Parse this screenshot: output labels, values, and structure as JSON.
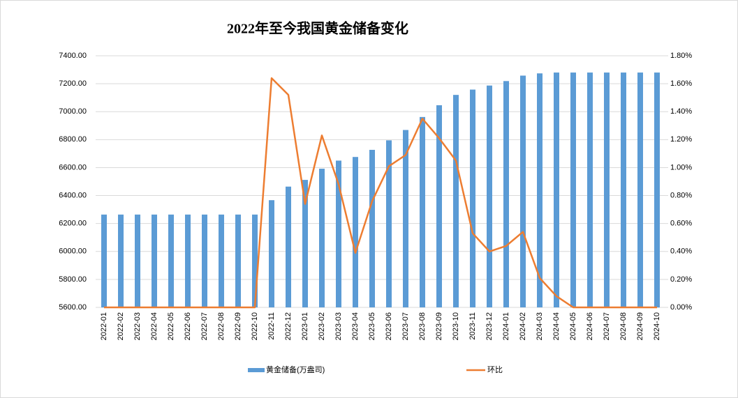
{
  "chart_data": {
    "type": "bar",
    "title": "2022年至今我国黄金储备变化",
    "categories": [
      "2022-01",
      "2022-02",
      "2022-03",
      "2022-04",
      "2022-05",
      "2022-06",
      "2022-07",
      "2022-08",
      "2022-09",
      "2022-10",
      "2022-11",
      "2022-12",
      "2023-01",
      "2023-02",
      "2023-03",
      "2023-04",
      "2023-05",
      "2023-06",
      "2023-07",
      "2023-08",
      "2023-09",
      "2023-10",
      "2023-11",
      "2023-12",
      "2024-01",
      "2024-02",
      "2024-03",
      "2024-04",
      "2024-05",
      "2024-06",
      "2024-07",
      "2024-08",
      "2024-09",
      "2024-10"
    ],
    "series": [
      {
        "name": "黄金储备(万盎司)",
        "type": "bar",
        "color": "#5b9bd5",
        "values": [
          6264,
          6264,
          6264,
          6264,
          6264,
          6264,
          6264,
          6264,
          6264,
          6264,
          6367,
          6464,
          6512,
          6592,
          6650,
          6676,
          6727,
          6795,
          6869,
          6962,
          7046,
          7120,
          7158,
          7187,
          7219,
          7258,
          7274,
          7280,
          7280,
          7280,
          7280,
          7280,
          7280,
          7280
        ]
      },
      {
        "name": "环比",
        "type": "line",
        "axis": "y2",
        "color": "#ed7d31",
        "values": [
          0,
          0,
          0,
          0,
          0,
          0,
          0,
          0,
          0,
          0,
          1.64,
          1.52,
          0.74,
          1.23,
          0.88,
          0.39,
          0.76,
          1.01,
          1.09,
          1.35,
          1.21,
          1.05,
          0.53,
          0.4,
          0.44,
          0.54,
          0.21,
          0.08,
          0,
          0,
          0,
          0,
          0,
          0
        ]
      }
    ],
    "ylim": [
      5600,
      7400
    ],
    "yticks": [
      {
        "value": 5600,
        "label": "5600.00"
      },
      {
        "value": 5800,
        "label": "5800.00"
      },
      {
        "value": 6000,
        "label": "6000.00"
      },
      {
        "value": 6200,
        "label": "6200.00"
      },
      {
        "value": 6400,
        "label": "6400.00"
      },
      {
        "value": 6600,
        "label": "6600.00"
      },
      {
        "value": 6800,
        "label": "6800.00"
      },
      {
        "value": 7000,
        "label": "7000.00"
      },
      {
        "value": 7200,
        "label": "7200.00"
      },
      {
        "value": 7400,
        "label": "7400.00"
      }
    ],
    "y2lim": [
      0,
      1.8
    ],
    "y2ticks": [
      {
        "value": 0,
        "label": "0.00%"
      },
      {
        "value": 0.2,
        "label": "0.20%"
      },
      {
        "value": 0.4,
        "label": "0.40%"
      },
      {
        "value": 0.6,
        "label": "0.60%"
      },
      {
        "value": 0.8,
        "label": "0.80%"
      },
      {
        "value": 1.0,
        "label": "1.00%"
      },
      {
        "value": 1.2,
        "label": "1.20%"
      },
      {
        "value": 1.4,
        "label": "1.40%"
      },
      {
        "value": 1.6,
        "label": "1.60%"
      },
      {
        "value": 1.8,
        "label": "1.80%"
      }
    ],
    "grid": true
  }
}
